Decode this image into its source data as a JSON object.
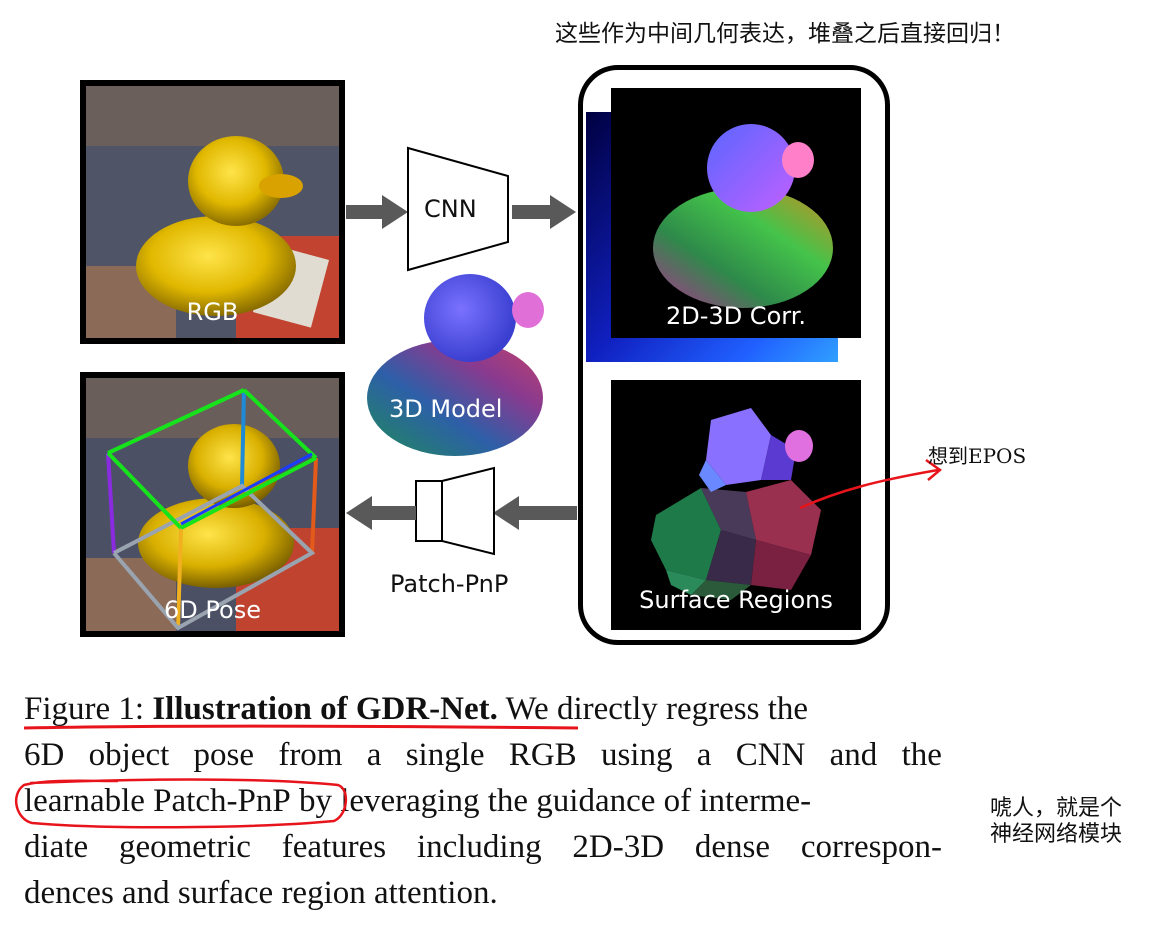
{
  "annotations": {
    "top_note": "这些作为中间几何表达，堆叠之后直接回归！",
    "epos_note": "想到EPOS",
    "side_note_line1": "唬人，就是个",
    "side_note_line2": "神经网络模块"
  },
  "figure": {
    "rgb_label": "RGB",
    "pose_label": "6D Pose",
    "cnn_label": "CNN",
    "model_label": "3D Model",
    "patchpnp_label": "Patch-PnP",
    "corr_label": "2D-3D Corr.",
    "regions_label": "Surface Regions"
  },
  "caption": {
    "fig_prefix": "Figure 1: ",
    "fig_title": "Illustration of GDR-Net.",
    "line1_rest": " We directly regress the",
    "line2": [
      "6D",
      "object",
      "pose",
      "from",
      "a",
      "single",
      "RGB",
      "using",
      "a",
      "CNN",
      "and",
      "the"
    ],
    "line3_mark": "learnable Patch-PnP",
    "line3_rest": " by leveraging the guidance of interme-",
    "line4": [
      "diate",
      "geometric",
      "features",
      "including",
      "2D-3D",
      "dense",
      "correspon-"
    ],
    "line5": "dences and surface region attention."
  },
  "colors": {
    "annotation_red": "#e8141c",
    "arrow_gray": "#595959",
    "bbox_green": "#16e31c",
    "bbox_blue": "#1a3cff"
  }
}
